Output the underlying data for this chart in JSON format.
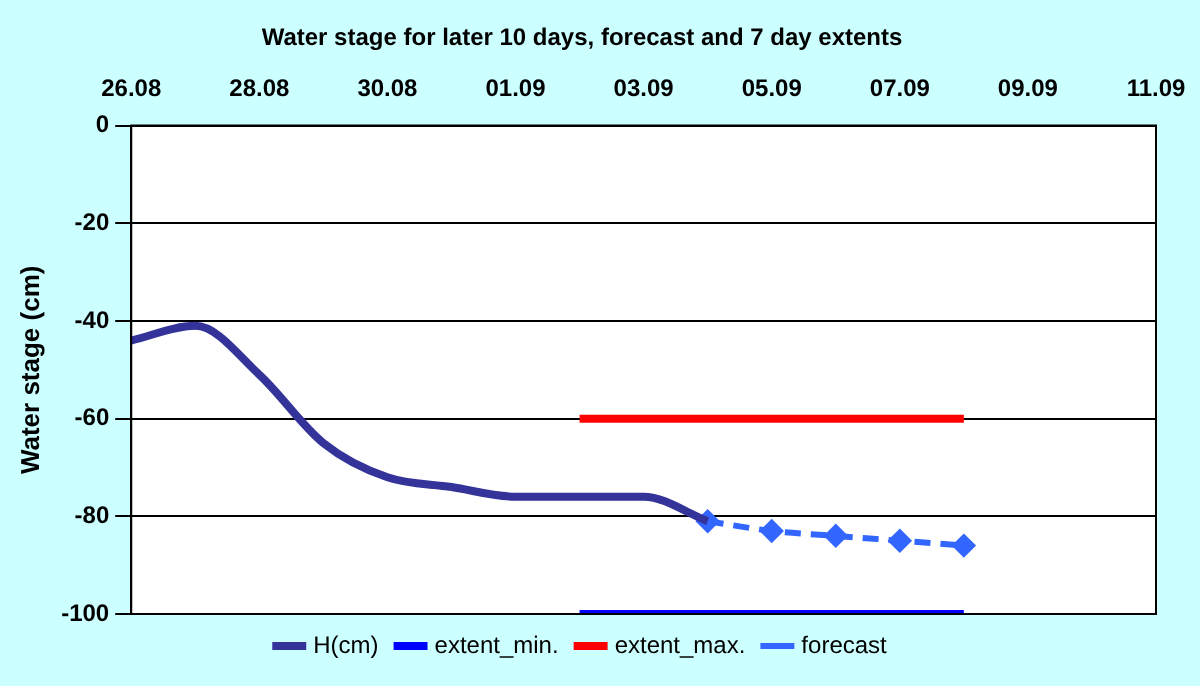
{
  "chart_data": {
    "type": "line",
    "title": "Water stage for later 10 days, forecast and 7 day extents",
    "ylabel": "Water stage (cm)",
    "xlim": [
      "--08-26",
      "--09-11"
    ],
    "xticks": [
      {
        "value": "--08-26",
        "label": "26.08"
      },
      {
        "value": "--08-28",
        "label": "28.08"
      },
      {
        "value": "--08-30",
        "label": "30.08"
      },
      {
        "value": "--09-01",
        "label": "01.09"
      },
      {
        "value": "--09-03",
        "label": "03.09"
      },
      {
        "value": "--09-05",
        "label": "05.09"
      },
      {
        "value": "--09-07",
        "label": "07.09"
      },
      {
        "value": "--09-09",
        "label": "09.09"
      },
      {
        "value": "--09-11",
        "label": "11.09"
      }
    ],
    "ylim": [
      -100,
      0
    ],
    "yticks": [
      0,
      -20,
      -40,
      -60,
      -80,
      -100
    ],
    "grid": "y",
    "legend": "bottom",
    "series": [
      {
        "name": "H(cm)",
        "color": "#333399",
        "x": [
          "--08-26",
          "--08-27",
          "--08-28",
          "--08-29",
          "--08-30",
          "--08-31",
          "--09-01",
          "--09-02",
          "--09-03",
          "--09-04"
        ],
        "values": [
          -44,
          -41,
          -51,
          -65,
          -72,
          -74,
          -76,
          -76,
          -76,
          -81
        ],
        "marker": "none",
        "line_style": "solid"
      },
      {
        "name": "extent_min.",
        "color": "#0000ff",
        "x": [
          "--09-02",
          "--09-08"
        ],
        "values": [
          -100,
          -100
        ],
        "marker": "none",
        "line_style": "solid"
      },
      {
        "name": "extent_max.",
        "color": "#ff0000",
        "x": [
          "--09-02",
          "--09-08"
        ],
        "values": [
          -60,
          -60
        ],
        "marker": "none",
        "line_style": "solid"
      },
      {
        "name": "forecast",
        "color": "#3366ff",
        "x": [
          "--09-04",
          "--09-05",
          "--09-06",
          "--09-07",
          "--09-08"
        ],
        "values": [
          -81,
          -83,
          -84,
          -85,
          -86
        ],
        "marker": "diamond",
        "line_style": "dashed"
      }
    ]
  }
}
